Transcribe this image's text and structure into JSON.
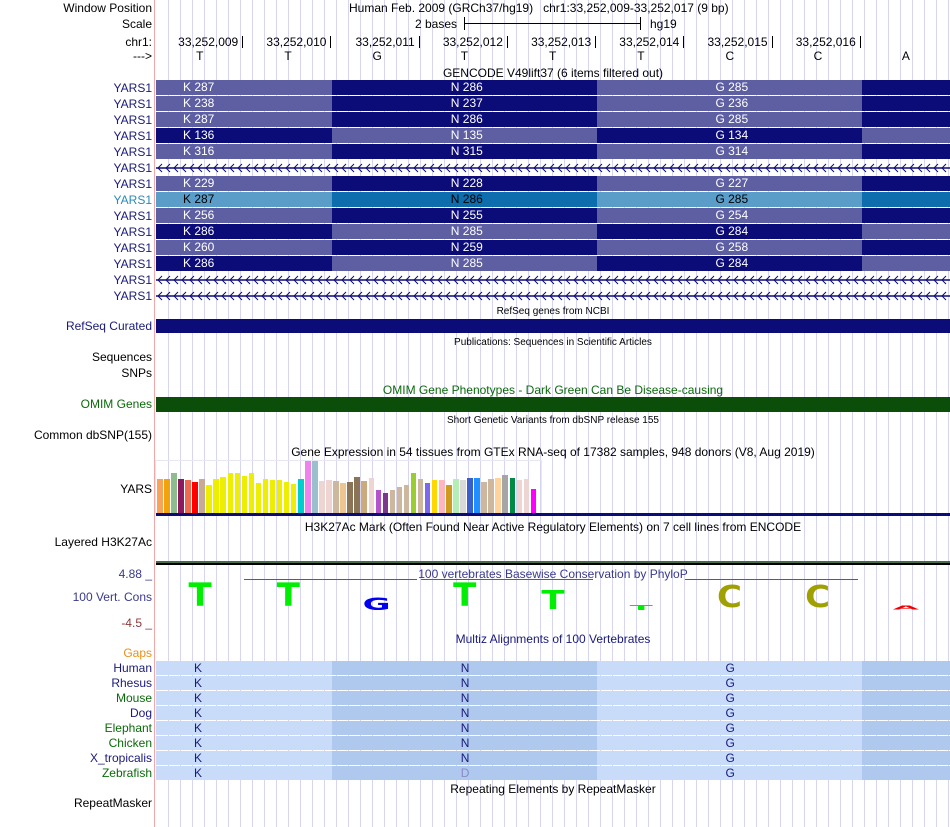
{
  "header": {
    "window_position_label": "Window Position",
    "assembly": "Human Feb. 2009 (GRCh37/hg19)",
    "position": "chr1:33,252,009-33,252,017 (9 bp)",
    "scale_label": "Scale",
    "scale_text": "2 bases",
    "scale_assembly": "hg19",
    "chrom_label": "chr1:",
    "strand_label": "--->",
    "coordinates": [
      "33,252,009",
      "33,252,010",
      "33,252,011",
      "33,252,012",
      "33,252,013",
      "33,252,014",
      "33,252,015",
      "33,252,016"
    ],
    "bases": [
      "T",
      "T",
      "G",
      "T",
      "T",
      "T",
      "C",
      "C",
      "A"
    ]
  },
  "gencode": {
    "title": "GENCODE V49lift37 (6 items filtered out)",
    "rows": [
      {
        "label": "YARS1",
        "type": "coding",
        "k": "K 287",
        "n": "N 286",
        "g": "G 285",
        "phase": 0
      },
      {
        "label": "YARS1",
        "type": "coding",
        "k": "K 238",
        "n": "N 237",
        "g": "G 236",
        "phase": 0
      },
      {
        "label": "YARS1",
        "type": "coding",
        "k": "K 287",
        "n": "N 286",
        "g": "G 285",
        "phase": 0
      },
      {
        "label": "YARS1",
        "type": "coding",
        "k": "K 136",
        "n": "N 135",
        "g": "G 134",
        "phase": 1
      },
      {
        "label": "YARS1",
        "type": "coding",
        "k": "K 316",
        "n": "N 315",
        "g": "G 314",
        "phase": 0
      },
      {
        "label": "YARS1",
        "type": "intron"
      },
      {
        "label": "YARS1",
        "type": "coding",
        "k": "K 229",
        "n": "N 228",
        "g": "G 227",
        "phase": 0
      },
      {
        "label": "YARS1",
        "type": "coding",
        "k": "K 287",
        "n": "N 286",
        "g": "G 285",
        "phase": 0,
        "highlight": true
      },
      {
        "label": "YARS1",
        "type": "coding",
        "k": "K 256",
        "n": "N 255",
        "g": "G 254",
        "phase": 0
      },
      {
        "label": "YARS1",
        "type": "coding",
        "k": "K 286",
        "n": "N 285",
        "g": "G 284",
        "phase": 1
      },
      {
        "label": "YARS1",
        "type": "coding",
        "k": "K 260",
        "n": "N 259",
        "g": "G 258",
        "phase": 0
      },
      {
        "label": "YARS1",
        "type": "coding",
        "k": "K 286",
        "n": "N 285",
        "g": "G 284",
        "phase": 1
      },
      {
        "label": "YARS1",
        "type": "intron"
      },
      {
        "label": "YARS1",
        "type": "intron"
      }
    ]
  },
  "refseq": {
    "title": "RefSeq genes from NCBI",
    "label": "RefSeq Curated"
  },
  "publications": {
    "title": "Publications: Sequences in Scientific Articles",
    "label_sequences": "Sequences",
    "label_snps": "SNPs"
  },
  "omim": {
    "title": "OMIM Gene Phenotypes - Dark Green Can Be Disease-causing",
    "label": "OMIM Genes"
  },
  "dbsnp": {
    "title": "Short Genetic Variants from dbSNP release 155",
    "label": "Common dbSNP(155)"
  },
  "gtex": {
    "title": "Gene Expression in 54 tissues from GTEx RNA-seq of 17382 samples, 948 donors (V8, Aug 2019)",
    "label": "YARS",
    "bars": [
      {
        "color": "#f7a35c",
        "value": 0.66
      },
      {
        "color": "#f0a30a",
        "value": 0.66
      },
      {
        "color": "#8fbc8f",
        "value": 0.77
      },
      {
        "color": "#8b1a5f",
        "value": 0.66
      },
      {
        "color": "#ee6a50",
        "value": 0.64
      },
      {
        "color": "#ff0000",
        "value": 0.6
      },
      {
        "color": "#c8aa96",
        "value": 0.66
      },
      {
        "color": "#eeee00",
        "value": 0.53
      },
      {
        "color": "#eeee00",
        "value": 0.66
      },
      {
        "color": "#eeee00",
        "value": 0.7
      },
      {
        "color": "#eeee00",
        "value": 0.76
      },
      {
        "color": "#eeee00",
        "value": 0.76
      },
      {
        "color": "#eeee00",
        "value": 0.72
      },
      {
        "color": "#eeee00",
        "value": 0.76
      },
      {
        "color": "#eeee00",
        "value": 0.57
      },
      {
        "color": "#eeee00",
        "value": 0.66
      },
      {
        "color": "#eeee00",
        "value": 0.64
      },
      {
        "color": "#eeee00",
        "value": 0.64
      },
      {
        "color": "#eeee00",
        "value": 0.6
      },
      {
        "color": "#eeee00",
        "value": 0.55
      },
      {
        "color": "#00cdcd",
        "value": 0.66
      },
      {
        "color": "#ee82ee",
        "value": 1.0
      },
      {
        "color": "#9ac0cd",
        "value": 1.0
      },
      {
        "color": "#eed5d2",
        "value": 0.62
      },
      {
        "color": "#eed5d2",
        "value": 0.64
      },
      {
        "color": "#cdb79e",
        "value": 0.62
      },
      {
        "color": "#eec591",
        "value": 0.57
      },
      {
        "color": "#8b7355",
        "value": 0.6
      },
      {
        "color": "#8b7355",
        "value": 0.7
      },
      {
        "color": "#cdaa7d",
        "value": 0.62
      },
      {
        "color": "#eed5d2",
        "value": 0.68
      },
      {
        "color": "#b452cd",
        "value": 0.44
      },
      {
        "color": "#7a378b",
        "value": 0.38
      },
      {
        "color": "#cdb79e",
        "value": 0.44
      },
      {
        "color": "#cdb79e",
        "value": 0.5
      },
      {
        "color": "#cdb79e",
        "value": 0.53
      },
      {
        "color": "#9acd32",
        "value": 0.76
      },
      {
        "color": "#cdb79e",
        "value": 0.66
      },
      {
        "color": "#7b68ee",
        "value": 0.57
      },
      {
        "color": "#ffd700",
        "value": 0.64
      },
      {
        "color": "#ffb6c1",
        "value": 0.64
      },
      {
        "color": "#cd9b1d",
        "value": 0.53
      },
      {
        "color": "#b4eeb4",
        "value": 0.66
      },
      {
        "color": "#d9d9d9",
        "value": 0.64
      },
      {
        "color": "#3a5fcd",
        "value": 0.68
      },
      {
        "color": "#1e90ff",
        "value": 0.68
      },
      {
        "color": "#cdb79e",
        "value": 0.6
      },
      {
        "color": "#cdb79e",
        "value": 0.66
      },
      {
        "color": "#ffd39b",
        "value": 0.68
      },
      {
        "color": "#a6a6a6",
        "value": 0.74
      },
      {
        "color": "#008b45",
        "value": 0.68
      },
      {
        "color": "#eed5d2",
        "value": 0.64
      },
      {
        "color": "#eed5d2",
        "value": 0.66
      },
      {
        "color": "#ff00ff",
        "value": 0.46
      }
    ]
  },
  "h3k27ac": {
    "title": "H3K27Ac Mark (Often Found Near Active Regulatory Elements) on 7 cell lines from ENCODE",
    "label": "Layered H3K27Ac"
  },
  "conservation": {
    "title": "100 vertebrates Basewise Conservation by PhyloP",
    "label": "100 Vert. Cons",
    "max_label": "4.88 _",
    "min_label": "-4.5 _",
    "letters": [
      {
        "base": "T",
        "color": "#00ee00",
        "score": 0.95
      },
      {
        "base": "T",
        "color": "#00ee00",
        "score": 0.95
      },
      {
        "base": "G",
        "color": "#0000ee",
        "score": 0.5
      },
      {
        "base": "T",
        "color": "#00ee00",
        "score": 0.95
      },
      {
        "base": "T",
        "color": "#00ee00",
        "score": 0.75
      },
      {
        "base": "T",
        "color": "#00ee00",
        "score": 0.2
      },
      {
        "base": "C",
        "color": "#a0a000",
        "score": 0.9
      },
      {
        "base": "C",
        "color": "#a0a000",
        "score": 0.9
      },
      {
        "base": "A",
        "color": "#ee0000",
        "score": 0.1
      }
    ]
  },
  "multiz": {
    "title": "Multiz Alignments of 100 Vertebrates",
    "gaps_label": "Gaps",
    "species": [
      {
        "name": "Human",
        "color": "#1a1a7a",
        "aa": [
          "K",
          "N",
          "G"
        ]
      },
      {
        "name": "Rhesus",
        "color": "#1a1a7a",
        "aa": [
          "K",
          "N",
          "G"
        ]
      },
      {
        "name": "Mouse",
        "color": "#0a6a0a",
        "aa": [
          "K",
          "N",
          "G"
        ]
      },
      {
        "name": "Dog",
        "color": "#1a1a7a",
        "aa": [
          "K",
          "N",
          "G"
        ]
      },
      {
        "name": "Elephant",
        "color": "#0a6a0a",
        "aa": [
          "K",
          "N",
          "G"
        ]
      },
      {
        "name": "Chicken",
        "color": "#0a6a0a",
        "aa": [
          "K",
          "N",
          "G"
        ]
      },
      {
        "name": "X_tropicalis",
        "color": "#1a1a7a",
        "aa": [
          "K",
          "N",
          "G"
        ]
      },
      {
        "name": "Zebrafish",
        "color": "#0a6a0a",
        "aa": [
          "K",
          "D",
          "G"
        ]
      }
    ]
  },
  "repeatmasker": {
    "title": "Repeating Elements by RepeatMasker",
    "label": "RepeatMasker"
  },
  "colors": {
    "gene_light": "#5e5ea2",
    "gene_dark": "#0c0c78",
    "highlight_light": "#5b9dc9",
    "highlight_dark": "#0e6ead",
    "label_blue": "#1a1a7a",
    "omim_green": "#0a4e0a",
    "maf_light": "#c8dcfa",
    "maf_dark": "#afc8ee"
  }
}
